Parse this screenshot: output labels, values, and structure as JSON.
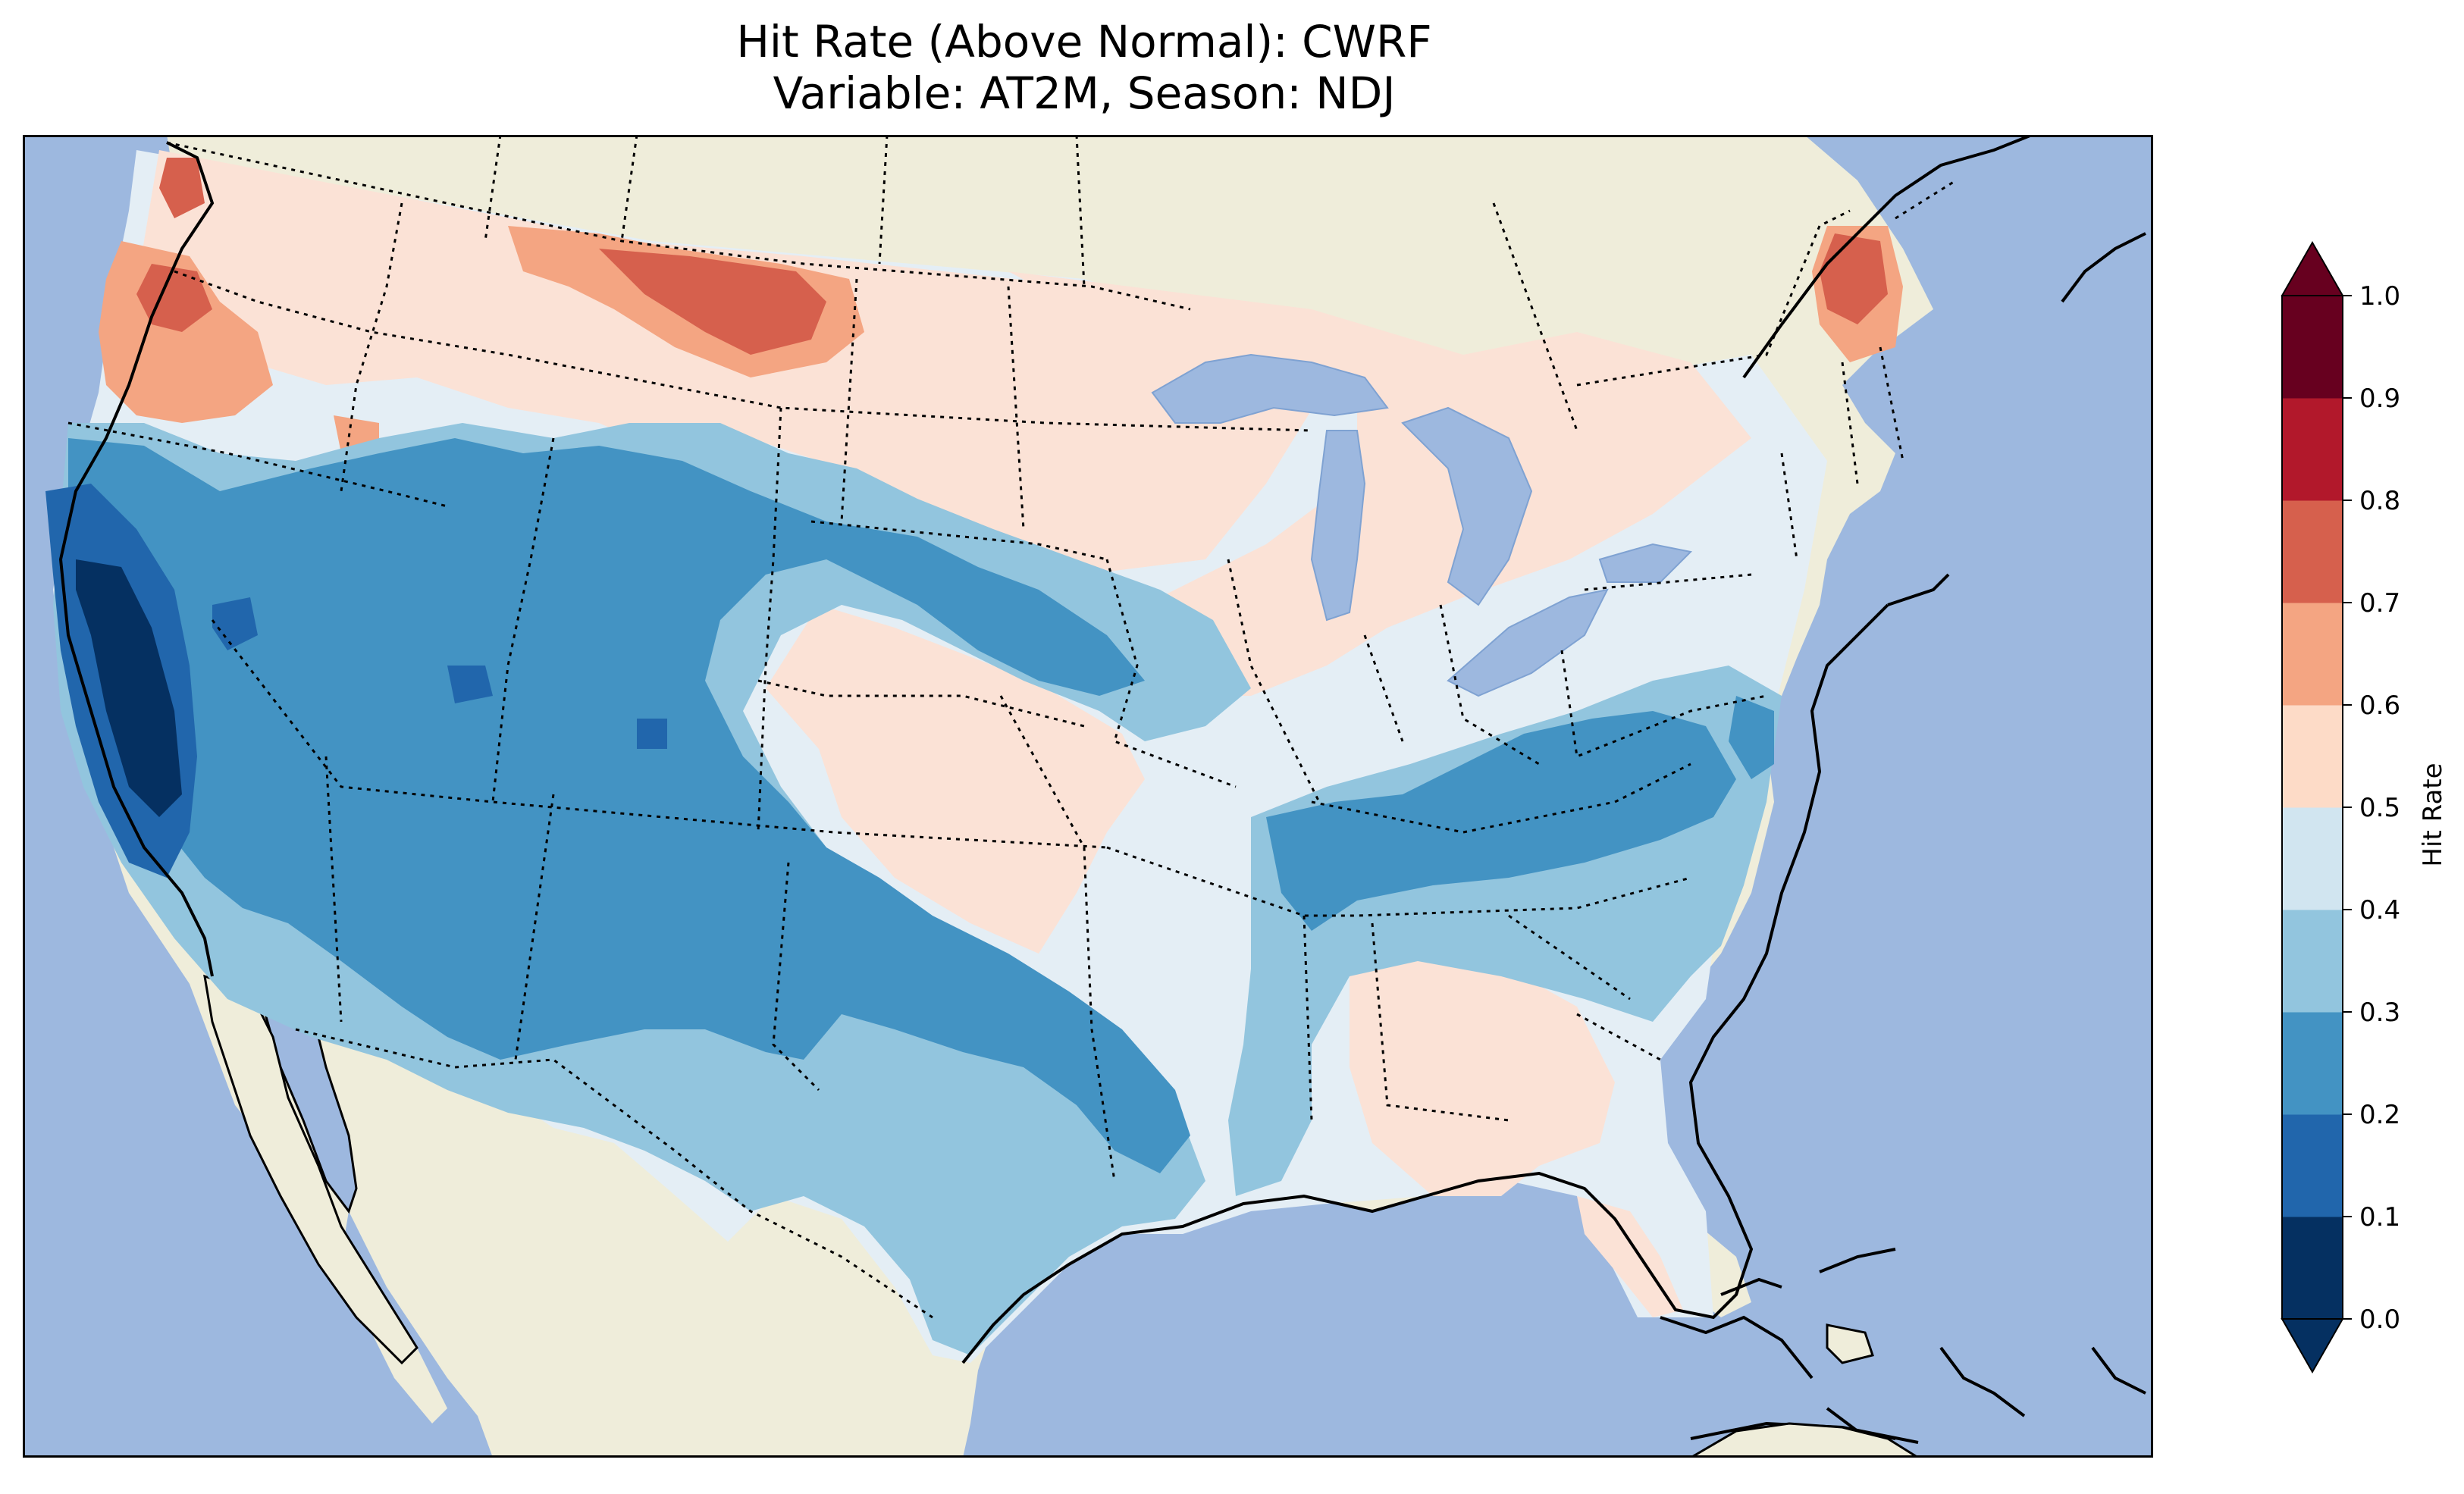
{
  "title": {
    "line1": "Hit Rate (Above Normal): CWRF",
    "line2": "Variable: AT2M, Season: NDJ"
  },
  "colorbar": {
    "label": "Hit Rate",
    "ticks": [
      "0.0",
      "0.1",
      "0.2",
      "0.3",
      "0.4",
      "0.5",
      "0.6",
      "0.7",
      "0.8",
      "0.9",
      "1.0"
    ],
    "colors": [
      "#053061",
      "#2166ac",
      "#4393c3",
      "#92c5de",
      "#d1e5f0",
      "#fddbc7",
      "#f4a582",
      "#d6604d",
      "#b2182b",
      "#67001f"
    ],
    "extend": "both"
  },
  "map": {
    "ocean_color": "#9db8df",
    "land_color": "#efedda",
    "projection_hint": "Lambert conformal, contiguous United States"
  }
}
